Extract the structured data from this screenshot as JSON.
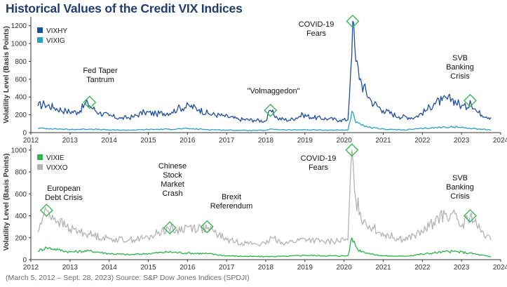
{
  "title": "Historical Values of the Credit VIX Indices",
  "source": "(March 5, 2012 – Sept. 28, 2023) Source: S&P Dow Jones Indices (SPDJI)",
  "chart_data": [
    {
      "type": "line",
      "ylabel": "Volatility Level (Basis Points)",
      "ylim": [
        0,
        1300
      ],
      "yticks": [
        0,
        200,
        400,
        600,
        800,
        1000,
        1200
      ],
      "xlim": [
        2012,
        2024
      ],
      "xticks": [
        2012,
        2013,
        2014,
        2015,
        2016,
        2017,
        2018,
        2019,
        2020,
        2021,
        2022,
        2023,
        2024
      ],
      "legend_position": "top-left",
      "series": [
        {
          "name": "VIXHY",
          "color": "#1f4e9c",
          "points": [
            [
              2012.18,
              300
            ],
            [
              2012.35,
              320
            ],
            [
              2012.6,
              280
            ],
            [
              2012.9,
              240
            ],
            [
              2013.2,
              230
            ],
            [
              2013.45,
              340
            ],
            [
              2013.5,
              300
            ],
            [
              2013.75,
              220
            ],
            [
              2014.0,
              190
            ],
            [
              2014.3,
              160
            ],
            [
              2014.6,
              175
            ],
            [
              2014.9,
              230
            ],
            [
              2015.2,
              210
            ],
            [
              2015.6,
              230
            ],
            [
              2015.75,
              270
            ],
            [
              2016.05,
              300
            ],
            [
              2016.3,
              260
            ],
            [
              2016.55,
              210
            ],
            [
              2016.9,
              190
            ],
            [
              2017.3,
              150
            ],
            [
              2017.7,
              140
            ],
            [
              2018.0,
              130
            ],
            [
              2018.12,
              250
            ],
            [
              2018.3,
              160
            ],
            [
              2018.6,
              140
            ],
            [
              2018.95,
              200
            ],
            [
              2019.2,
              170
            ],
            [
              2019.6,
              155
            ],
            [
              2019.9,
              140
            ],
            [
              2020.1,
              145
            ],
            [
              2020.17,
              700
            ],
            [
              2020.22,
              1250
            ],
            [
              2020.3,
              800
            ],
            [
              2020.45,
              550
            ],
            [
              2020.7,
              350
            ],
            [
              2021.0,
              250
            ],
            [
              2021.4,
              180
            ],
            [
              2021.8,
              170
            ],
            [
              2022.1,
              250
            ],
            [
              2022.3,
              330
            ],
            [
              2022.5,
              360
            ],
            [
              2022.75,
              380
            ],
            [
              2023.0,
              300
            ],
            [
              2023.15,
              280
            ],
            [
              2023.22,
              360
            ],
            [
              2023.4,
              230
            ],
            [
              2023.75,
              170
            ]
          ]
        },
        {
          "name": "VIXIG",
          "color": "#2aa1c4",
          "points": [
            [
              2012.18,
              50
            ],
            [
              2012.5,
              45
            ],
            [
              2013.0,
              35
            ],
            [
              2013.5,
              40
            ],
            [
              2014.0,
              30
            ],
            [
              2014.5,
              28
            ],
            [
              2015.0,
              35
            ],
            [
              2015.5,
              38
            ],
            [
              2016.0,
              45
            ],
            [
              2016.5,
              35
            ],
            [
              2017.0,
              28
            ],
            [
              2017.5,
              25
            ],
            [
              2018.0,
              25
            ],
            [
              2018.15,
              40
            ],
            [
              2018.5,
              30
            ],
            [
              2019.0,
              32
            ],
            [
              2019.5,
              28
            ],
            [
              2020.1,
              30
            ],
            [
              2020.2,
              240
            ],
            [
              2020.3,
              110
            ],
            [
              2020.6,
              60
            ],
            [
              2021.0,
              40
            ],
            [
              2021.5,
              30
            ],
            [
              2022.0,
              45
            ],
            [
              2022.5,
              60
            ],
            [
              2022.8,
              65
            ],
            [
              2023.2,
              50
            ],
            [
              2023.75,
              30
            ]
          ]
        }
      ],
      "annotations": [
        {
          "text": [
            "Fed Taper",
            "Tantrum"
          ],
          "x": 2013.5,
          "y": 340
        },
        {
          "text": [
            "\"Volmaggedon\""
          ],
          "x": 2018.12,
          "y": 250
        },
        {
          "text": [
            "COVID-19",
            "Fears"
          ],
          "x": 2020.22,
          "y": 1250
        },
        {
          "text": [
            "SVB",
            "Banking",
            "Crisis"
          ],
          "x": 2023.22,
          "y": 360
        }
      ]
    },
    {
      "type": "line",
      "ylabel": "Volatility Level (Basis Points)",
      "ylim": [
        0,
        1050
      ],
      "yticks": [
        0,
        200,
        400,
        600,
        800,
        1000
      ],
      "xlim": [
        2012,
        2024
      ],
      "xticks": [
        2012,
        2013,
        2014,
        2015,
        2016,
        2017,
        2018,
        2019,
        2020,
        2021,
        2022,
        2023,
        2024
      ],
      "legend_position": "top-left",
      "series": [
        {
          "name": "VIXIE",
          "color": "#2db34a",
          "points": [
            [
              2012.18,
              80
            ],
            [
              2012.4,
              110
            ],
            [
              2012.7,
              90
            ],
            [
              2013.0,
              70
            ],
            [
              2013.5,
              80
            ],
            [
              2014.0,
              55
            ],
            [
              2014.5,
              45
            ],
            [
              2015.0,
              55
            ],
            [
              2015.5,
              70
            ],
            [
              2016.0,
              60
            ],
            [
              2016.5,
              55
            ],
            [
              2017.0,
              35
            ],
            [
              2017.5,
              30
            ],
            [
              2018.0,
              28
            ],
            [
              2018.5,
              30
            ],
            [
              2019.0,
              40
            ],
            [
              2019.5,
              35
            ],
            [
              2020.1,
              35
            ],
            [
              2020.2,
              200
            ],
            [
              2020.35,
              90
            ],
            [
              2020.7,
              50
            ],
            [
              2021.0,
              35
            ],
            [
              2021.5,
              30
            ],
            [
              2022.0,
              50
            ],
            [
              2022.5,
              70
            ],
            [
              2022.8,
              75
            ],
            [
              2023.2,
              60
            ],
            [
              2023.75,
              25
            ]
          ]
        },
        {
          "name": "VIXXO",
          "color": "#b3b3b3",
          "points": [
            [
              2012.18,
              250
            ],
            [
              2012.3,
              380
            ],
            [
              2012.4,
              450
            ],
            [
              2012.7,
              350
            ],
            [
              2013.0,
              280
            ],
            [
              2013.5,
              230
            ],
            [
              2014.0,
              190
            ],
            [
              2014.5,
              180
            ],
            [
              2015.0,
              200
            ],
            [
              2015.5,
              290
            ],
            [
              2015.7,
              260
            ],
            [
              2016.0,
              300
            ],
            [
              2016.5,
              280
            ],
            [
              2016.8,
              230
            ],
            [
              2017.0,
              180
            ],
            [
              2017.5,
              150
            ],
            [
              2018.0,
              140
            ],
            [
              2018.15,
              200
            ],
            [
              2018.5,
              150
            ],
            [
              2019.0,
              190
            ],
            [
              2019.5,
              160
            ],
            [
              2020.1,
              180
            ],
            [
              2020.2,
              1000
            ],
            [
              2020.3,
              550
            ],
            [
              2020.5,
              350
            ],
            [
              2020.9,
              250
            ],
            [
              2021.5,
              180
            ],
            [
              2022.0,
              250
            ],
            [
              2022.4,
              380
            ],
            [
              2022.75,
              420
            ],
            [
              2023.0,
              300
            ],
            [
              2023.22,
              400
            ],
            [
              2023.5,
              250
            ],
            [
              2023.75,
              180
            ]
          ]
        }
      ],
      "annotations": [
        {
          "text": [
            "European",
            "Debt Crisis"
          ],
          "x": 2012.4,
          "y": 450
        },
        {
          "text": [
            "Chinese",
            "Stock",
            "Market",
            "Crash"
          ],
          "x": 2015.55,
          "y": 290
        },
        {
          "text": [
            "Brexit",
            "Referendum"
          ],
          "x": 2016.5,
          "y": 300
        },
        {
          "text": [
            "COVID-19",
            "Fears"
          ],
          "x": 2020.2,
          "y": 1000
        },
        {
          "text": [
            "SVB",
            "Banking",
            "Crisis"
          ],
          "x": 2023.22,
          "y": 400
        }
      ]
    }
  ]
}
